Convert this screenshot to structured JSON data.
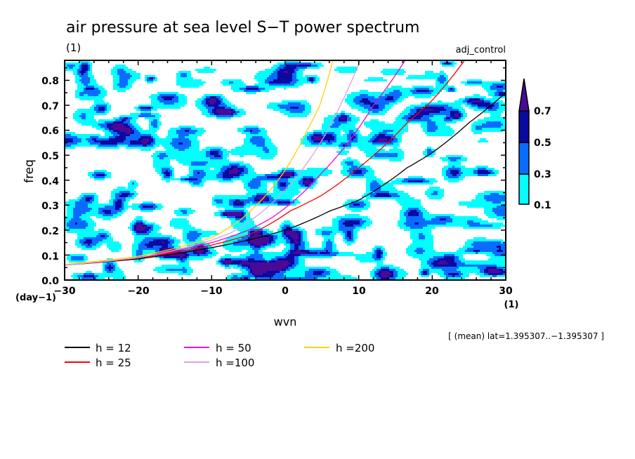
{
  "chart_data": {
    "type": "heatmap",
    "title": "air pressure at sea level S−T power spectrum",
    "units": "(1)",
    "experiment": "adj_control",
    "xlabel": "wvn",
    "x_units": "(1)",
    "ylabel": "freq",
    "y_units": "(day−1)",
    "xlim": [
      -30,
      30
    ],
    "ylim": [
      0,
      0.88
    ],
    "x_ticks": [
      -30,
      -20,
      -10,
      0,
      10,
      20,
      30
    ],
    "x_tick_labels": [
      "−30",
      "−20",
      "−10",
      "0",
      "10",
      "20",
      "30"
    ],
    "y_ticks": [
      0.0,
      0.1,
      0.2,
      0.3,
      0.4,
      0.5,
      0.6,
      0.7,
      0.8
    ],
    "y_tick_labels": [
      "0.0",
      "0.1",
      "0.2",
      "0.3",
      "0.4",
      "0.5",
      "0.6",
      "0.7",
      "0.8"
    ],
    "contour_levels": [
      0.1,
      0.3,
      0.5,
      0.7
    ],
    "colorbar": {
      "labels": [
        "0.1",
        "0.3",
        "0.5",
        "0.7"
      ],
      "colors": [
        "#00ffff",
        "#0a6cff",
        "#0a0aa0",
        "#4b0a96"
      ],
      "extend": "max"
    },
    "note": "[ (mean) lat=1.395307..−1.395307 ]",
    "series": [
      {
        "name": "h = 12",
        "color": "#000000",
        "x": [
          -30,
          -20,
          -10,
          -5,
          0,
          6.1,
          10,
          16.6,
          20,
          25,
          30
        ],
        "y": [
          0.06,
          0.085,
          0.13,
          0.16,
          0.2,
          0.277,
          0.32,
          0.45,
          0.51,
          0.63,
          0.75
        ]
      },
      {
        "name": "h = 25",
        "color": "#ff0000",
        "x": [
          -30,
          -20,
          -10,
          -5,
          0.7,
          5,
          10,
          16.6,
          20,
          24.4
        ],
        "y": [
          0.06,
          0.088,
          0.14,
          0.18,
          0.277,
          0.34,
          0.45,
          0.63,
          0.72,
          0.88
        ]
      },
      {
        "name": "h = 50",
        "color": "#ff00c8",
        "x": [
          -30,
          -20,
          -10,
          -5,
          -1.8,
          5,
          12,
          16.3
        ],
        "y": [
          0.06,
          0.09,
          0.15,
          0.2,
          0.25,
          0.43,
          0.7,
          0.88
        ]
      },
      {
        "name": "h =100",
        "color": "#dca0dc",
        "x": [
          -30,
          -20,
          -10,
          -7.3,
          0,
          5,
          7.5,
          10.2
        ],
        "y": [
          0.06,
          0.09,
          0.16,
          0.19,
          0.36,
          0.56,
          0.7,
          0.88
        ]
      },
      {
        "name": "h =200",
        "color": "#ffd200",
        "x": [
          -30,
          -20,
          -10,
          -6.6,
          0,
          3,
          4.7,
          6.5
        ],
        "y": [
          0.063,
          0.095,
          0.17,
          0.23,
          0.44,
          0.6,
          0.7,
          0.88
        ]
      }
    ]
  }
}
